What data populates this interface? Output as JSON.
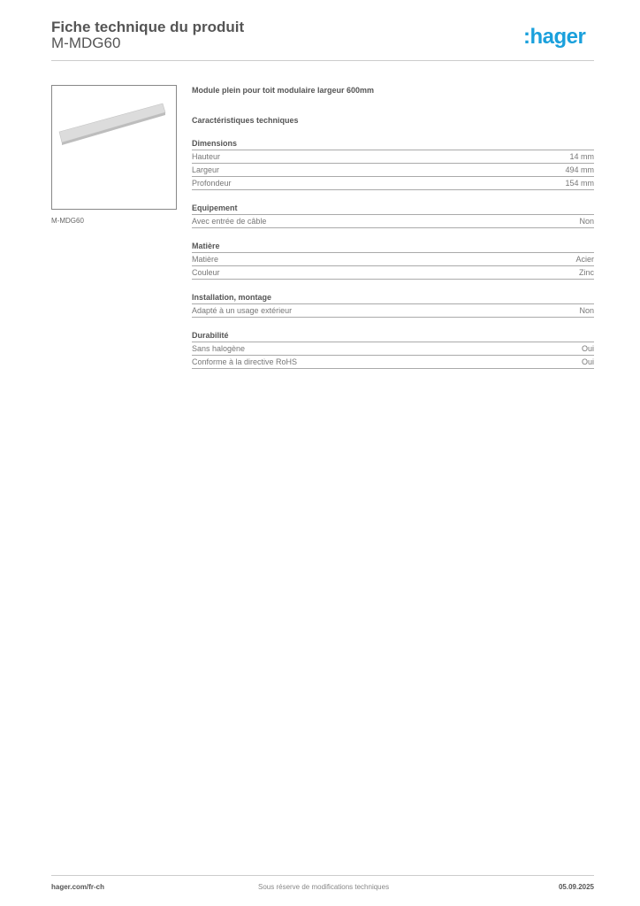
{
  "header": {
    "title": "Fiche technique du produit",
    "subtitle": "M-MDG60",
    "logo": ":hager"
  },
  "product": {
    "image_caption": "M-MDG60",
    "description": "Module plein pour toit modulaire largeur 600mm",
    "characteristics_title": "Caractéristiques techniques"
  },
  "sections": [
    {
      "title": "Dimensions",
      "rows": [
        {
          "label": "Hauteur",
          "value": "14 mm"
        },
        {
          "label": "Largeur",
          "value": "494 mm"
        },
        {
          "label": "Profondeur",
          "value": "154 mm"
        }
      ]
    },
    {
      "title": "Equipement",
      "rows": [
        {
          "label": "Avec entrée de câble",
          "value": "Non"
        }
      ]
    },
    {
      "title": "Matière",
      "rows": [
        {
          "label": "Matière",
          "value": "Acier"
        },
        {
          "label": "Couleur",
          "value": "Zinc"
        }
      ]
    },
    {
      "title": "Installation, montage",
      "rows": [
        {
          "label": "Adapté à un usage extérieur",
          "value": "Non"
        }
      ]
    },
    {
      "title": "Durabilité",
      "rows": [
        {
          "label": "Sans halogène",
          "value": "Oui"
        },
        {
          "label": "Conforme à la directive RoHS",
          "value": "Oui"
        }
      ]
    }
  ],
  "footer": {
    "website": "hager.com/fr-ch",
    "disclaimer": "Sous réserve de modifications techniques",
    "date": "05.09.2025"
  },
  "colors": {
    "brand": "#1aa0dc"
  }
}
